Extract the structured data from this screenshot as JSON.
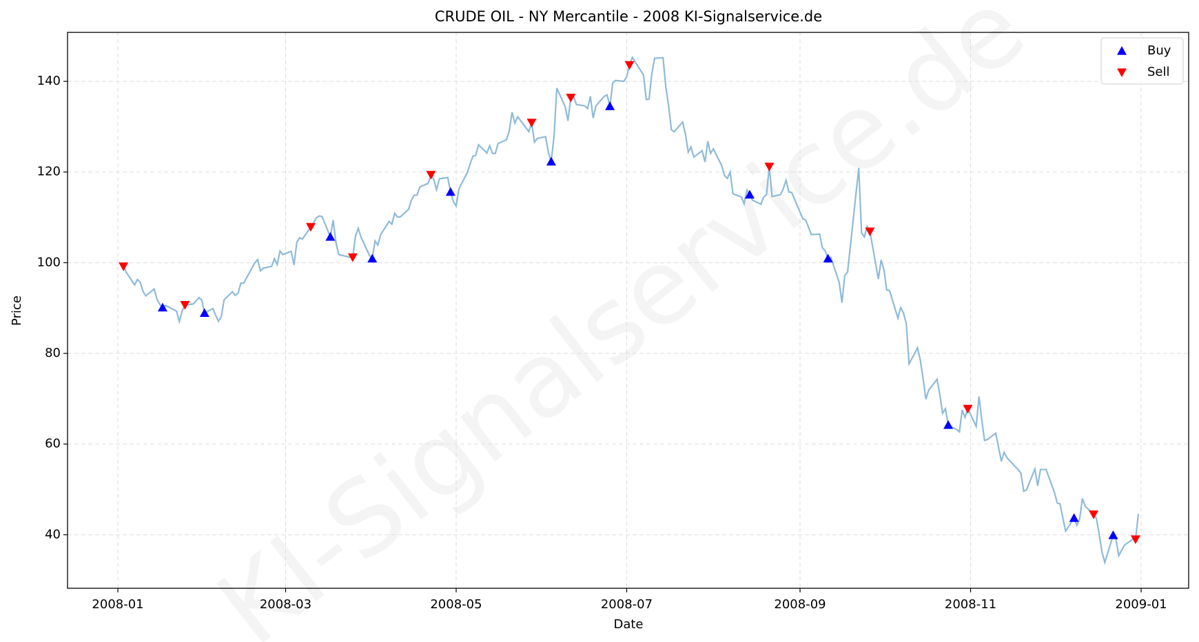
{
  "chart_data": {
    "type": "line",
    "title": "CRUDE OIL - NY Mercantile - 2008 KI-Signalservice.de",
    "xlabel": "Date",
    "ylabel": "Price",
    "watermark": "KI-Signalservice.de",
    "color": "#8ebad9",
    "grid": true,
    "legend": "upper right",
    "xlim": [
      "2007-12-14",
      "2009-01-18"
    ],
    "xticks": [
      {
        "value": "2008-01-01",
        "label": "2008-01"
      },
      {
        "value": "2008-03-01",
        "label": "2008-03"
      },
      {
        "value": "2008-05-01",
        "label": "2008-05"
      },
      {
        "value": "2008-07-01",
        "label": "2008-07"
      },
      {
        "value": "2008-09-01",
        "label": "2008-09"
      },
      {
        "value": "2008-11-01",
        "label": "2008-11"
      },
      {
        "value": "2009-01-01",
        "label": "2009-01"
      }
    ],
    "ylim": [
      28.2,
      150.8
    ],
    "yticks": [
      40,
      60,
      80,
      100,
      120,
      140
    ],
    "x": [
      "2008-01-02",
      "2008-01-03",
      "2008-01-04",
      "2008-01-07",
      "2008-01-08",
      "2008-01-09",
      "2008-01-10",
      "2008-01-11",
      "2008-01-14",
      "2008-01-15",
      "2008-01-16",
      "2008-01-17",
      "2008-01-18",
      "2008-01-22",
      "2008-01-23",
      "2008-01-24",
      "2008-01-25",
      "2008-01-28",
      "2008-01-29",
      "2008-01-30",
      "2008-01-31",
      "2008-02-01",
      "2008-02-04",
      "2008-02-05",
      "2008-02-06",
      "2008-02-07",
      "2008-02-08",
      "2008-02-11",
      "2008-02-12",
      "2008-02-13",
      "2008-02-14",
      "2008-02-15",
      "2008-02-19",
      "2008-02-20",
      "2008-02-21",
      "2008-02-22",
      "2008-02-25",
      "2008-02-26",
      "2008-02-27",
      "2008-02-28",
      "2008-02-29",
      "2008-03-03",
      "2008-03-04",
      "2008-03-05",
      "2008-03-06",
      "2008-03-07",
      "2008-03-10",
      "2008-03-11",
      "2008-03-12",
      "2008-03-13",
      "2008-03-14",
      "2008-03-17",
      "2008-03-18",
      "2008-03-19",
      "2008-03-20",
      "2008-03-24",
      "2008-03-25",
      "2008-03-26",
      "2008-03-27",
      "2008-03-28",
      "2008-03-31",
      "2008-04-01",
      "2008-04-02",
      "2008-04-03",
      "2008-04-04",
      "2008-04-07",
      "2008-04-08",
      "2008-04-09",
      "2008-04-10",
      "2008-04-11",
      "2008-04-14",
      "2008-04-15",
      "2008-04-16",
      "2008-04-17",
      "2008-04-18",
      "2008-04-21",
      "2008-04-22",
      "2008-04-23",
      "2008-04-24",
      "2008-04-25",
      "2008-04-28",
      "2008-04-29",
      "2008-04-30",
      "2008-05-01",
      "2008-05-02",
      "2008-05-05",
      "2008-05-06",
      "2008-05-07",
      "2008-05-08",
      "2008-05-09",
      "2008-05-12",
      "2008-05-13",
      "2008-05-14",
      "2008-05-15",
      "2008-05-16",
      "2008-05-19",
      "2008-05-20",
      "2008-05-21",
      "2008-05-22",
      "2008-05-23",
      "2008-05-27",
      "2008-05-28",
      "2008-05-29",
      "2008-05-30",
      "2008-06-02",
      "2008-06-03",
      "2008-06-04",
      "2008-06-05",
      "2008-06-06",
      "2008-06-09",
      "2008-06-10",
      "2008-06-11",
      "2008-06-12",
      "2008-06-13",
      "2008-06-16",
      "2008-06-17",
      "2008-06-18",
      "2008-06-19",
      "2008-06-20",
      "2008-06-23",
      "2008-06-24",
      "2008-06-25",
      "2008-06-26",
      "2008-06-27",
      "2008-06-30",
      "2008-07-01",
      "2008-07-02",
      "2008-07-03",
      "2008-07-07",
      "2008-07-08",
      "2008-07-09",
      "2008-07-10",
      "2008-07-11",
      "2008-07-14",
      "2008-07-15",
      "2008-07-16",
      "2008-07-17",
      "2008-07-18",
      "2008-07-21",
      "2008-07-22",
      "2008-07-23",
      "2008-07-24",
      "2008-07-25",
      "2008-07-28",
      "2008-07-29",
      "2008-07-30",
      "2008-07-31",
      "2008-08-01",
      "2008-08-04",
      "2008-08-05",
      "2008-08-06",
      "2008-08-07",
      "2008-08-08",
      "2008-08-11",
      "2008-08-12",
      "2008-08-13",
      "2008-08-14",
      "2008-08-15",
      "2008-08-18",
      "2008-08-19",
      "2008-08-20",
      "2008-08-21",
      "2008-08-22",
      "2008-08-25",
      "2008-08-26",
      "2008-08-27",
      "2008-08-28",
      "2008-08-29",
      "2008-09-02",
      "2008-09-03",
      "2008-09-04",
      "2008-09-05",
      "2008-09-08",
      "2008-09-09",
      "2008-09-10",
      "2008-09-11",
      "2008-09-12",
      "2008-09-15",
      "2008-09-16",
      "2008-09-17",
      "2008-09-18",
      "2008-09-22",
      "2008-09-23",
      "2008-09-24",
      "2008-09-25",
      "2008-09-26",
      "2008-09-29",
      "2008-09-30",
      "2008-10-01",
      "2008-10-02",
      "2008-10-03",
      "2008-10-06",
      "2008-10-07",
      "2008-10-08",
      "2008-10-09",
      "2008-10-10",
      "2008-10-13",
      "2008-10-14",
      "2008-10-15",
      "2008-10-16",
      "2008-10-17",
      "2008-10-20",
      "2008-10-21",
      "2008-10-22",
      "2008-10-23",
      "2008-10-24",
      "2008-10-27",
      "2008-10-28",
      "2008-10-29",
      "2008-10-30",
      "2008-10-31",
      "2008-11-03",
      "2008-11-04",
      "2008-11-05",
      "2008-11-06",
      "2008-11-07",
      "2008-11-10",
      "2008-11-11",
      "2008-11-12",
      "2008-11-13",
      "2008-11-14",
      "2008-11-17",
      "2008-11-18",
      "2008-11-19",
      "2008-11-20",
      "2008-11-21",
      "2008-11-24",
      "2008-11-25",
      "2008-11-26",
      "2008-11-28",
      "2008-12-01",
      "2008-12-02",
      "2008-12-03",
      "2008-12-04",
      "2008-12-05",
      "2008-12-08",
      "2008-12-09",
      "2008-12-10",
      "2008-12-11",
      "2008-12-12",
      "2008-12-15",
      "2008-12-16",
      "2008-12-17",
      "2008-12-18",
      "2008-12-19",
      "2008-12-22",
      "2008-12-23",
      "2008-12-24",
      "2008-12-26",
      "2008-12-29",
      "2008-12-30",
      "2008-12-31"
    ],
    "values": [
      99.6,
      99.2,
      97.9,
      95.1,
      96.3,
      95.7,
      93.7,
      92.7,
      94.2,
      91.9,
      90.8,
      90.1,
      90.6,
      89.3,
      87.0,
      89.4,
      90.7,
      90.9,
      91.6,
      92.3,
      91.8,
      88.9,
      89.9,
      88.4,
      87.1,
      88.1,
      91.8,
      93.6,
      92.8,
      93.3,
      95.5,
      95.5,
      100.0,
      100.7,
      98.2,
      98.8,
      99.2,
      100.9,
      99.6,
      102.6,
      101.8,
      102.5,
      99.5,
      104.5,
      105.5,
      105.2,
      107.9,
      108.8,
      109.9,
      110.3,
      110.2,
      105.7,
      109.4,
      104.5,
      101.8,
      101.2,
      101.2,
      105.9,
      107.6,
      105.6,
      101.6,
      100.9,
      104.8,
      103.9,
      106.2,
      109.1,
      108.5,
      110.9,
      110.1,
      110.1,
      111.8,
      113.8,
      114.9,
      114.9,
      116.7,
      117.5,
      119.4,
      118.3,
      116.1,
      118.5,
      118.8,
      115.6,
      113.5,
      112.5,
      116.3,
      119.9,
      121.8,
      123.5,
      123.7,
      126.0,
      124.2,
      125.8,
      124.1,
      124.1,
      126.3,
      127.1,
      129.1,
      133.2,
      130.8,
      132.2,
      128.9,
      130.9,
      126.6,
      127.4,
      127.8,
      124.3,
      122.3,
      127.8,
      138.5,
      134.4,
      131.3,
      136.4,
      136.7,
      134.9,
      134.6,
      134.0,
      136.7,
      131.9,
      134.6,
      136.7,
      137.0,
      134.5,
      139.6,
      140.2,
      140.0,
      141.0,
      143.6,
      145.3,
      141.4,
      136.0,
      136.1,
      141.7,
      145.1,
      145.2,
      138.7,
      134.6,
      129.3,
      128.9,
      131.0,
      128.4,
      124.4,
      125.5,
      123.3,
      124.7,
      122.2,
      126.8,
      124.1,
      125.1,
      121.4,
      119.2,
      118.6,
      120.0,
      115.2,
      114.5,
      113.0,
      116.0,
      115.0,
      113.8,
      112.9,
      114.5,
      115.0,
      121.2,
      114.6,
      115.0,
      116.3,
      118.2,
      115.6,
      115.5,
      109.7,
      109.4,
      107.9,
      106.2,
      106.3,
      103.3,
      102.6,
      100.9,
      101.2,
      95.7,
      91.2,
      97.2,
      97.9,
      120.9,
      106.6,
      105.7,
      108.0,
      106.9,
      96.4,
      100.6,
      98.5,
      94.0,
      93.9,
      87.8,
      90.1,
      88.9,
      86.6,
      77.7,
      81.2,
      78.6,
      74.5,
      69.9,
      71.9,
      74.3,
      70.9,
      66.8,
      67.8,
      64.2,
      63.2,
      62.7,
      67.5,
      65.9,
      67.8,
      63.9,
      70.5,
      65.3,
      60.8,
      61.0,
      62.4,
      59.3,
      56.2,
      58.2,
      57.0,
      55.0,
      54.4,
      53.6,
      49.6,
      49.9,
      54.5,
      50.8,
      54.4,
      54.4,
      49.3,
      47.0,
      46.8,
      43.7,
      40.8,
      43.7,
      42.1,
      43.5,
      48.0,
      46.3,
      44.5,
      43.6,
      40.1,
      36.2,
      33.9,
      39.9,
      39.0,
      35.4,
      37.7,
      39.0,
      39.0,
      44.6
    ],
    "series": [
      {
        "name": "Buy",
        "color": "#0000ff",
        "marker": "triangle-up",
        "x": [
          "2008-01-17",
          "2008-02-01",
          "2008-03-17",
          "2008-04-01",
          "2008-04-29",
          "2008-06-04",
          "2008-06-25",
          "2008-08-14",
          "2008-09-11",
          "2008-10-24",
          "2008-12-08",
          "2008-12-22"
        ],
        "values": [
          90.1,
          88.9,
          105.7,
          100.9,
          115.6,
          122.3,
          134.5,
          115.0,
          100.9,
          64.2,
          43.7,
          39.9
        ]
      },
      {
        "name": "Sell",
        "color": "#ff0000",
        "marker": "triangle-down",
        "x": [
          "2008-01-03",
          "2008-01-25",
          "2008-03-10",
          "2008-03-25",
          "2008-04-22",
          "2008-05-28",
          "2008-06-11",
          "2008-07-02",
          "2008-08-21",
          "2008-09-26",
          "2008-10-31",
          "2008-12-15",
          "2008-12-30"
        ],
        "values": [
          99.2,
          90.7,
          107.9,
          101.2,
          119.4,
          130.9,
          136.4,
          143.6,
          121.2,
          106.9,
          67.8,
          44.5,
          39.0
        ]
      }
    ]
  }
}
